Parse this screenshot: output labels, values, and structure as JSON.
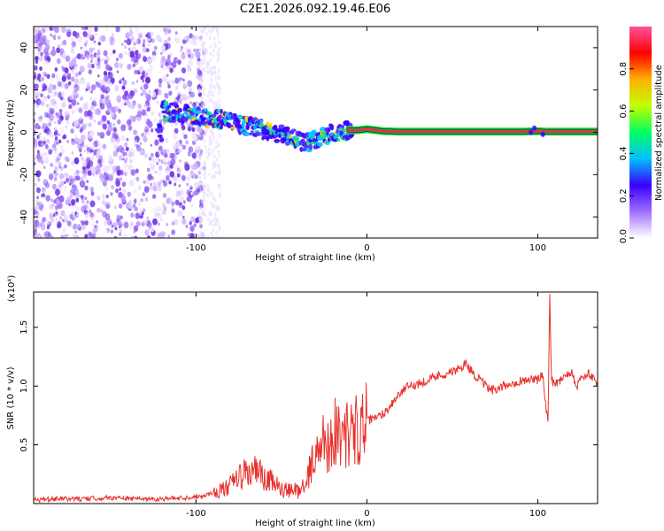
{
  "chart_data": [
    {
      "type": "heatmap",
      "title": "C2E1.2026.092.19.46.E06",
      "xlabel": "Height of straight line (km)",
      "ylabel": "Frequency (Hz)",
      "xlim": [
        -195,
        135
      ],
      "ylim": [
        -50,
        50
      ],
      "xticks": [
        -100,
        0,
        100
      ],
      "yticks": [
        -40,
        -20,
        0,
        20,
        40
      ],
      "signal_track": {
        "x": [
          -120,
          -110,
          -100,
          -95,
          -90,
          -85,
          -80,
          -75,
          -70,
          -65,
          -60,
          -55,
          -50,
          -45,
          -40,
          -35,
          -30,
          -25,
          -20,
          -15,
          -10,
          -5,
          0,
          5,
          10,
          20,
          30,
          40,
          50,
          60,
          70,
          80,
          90,
          100,
          105,
          110,
          120,
          130
        ],
        "y": [
          10,
          9,
          8,
          7,
          6,
          6,
          5,
          4,
          3,
          2,
          1,
          0,
          -1,
          -2,
          -4,
          -5,
          -3,
          -2,
          0,
          0.5,
          1,
          1,
          1.5,
          1,
          0.5,
          0.3,
          0.3,
          0.3,
          0.3,
          0.3,
          0.3,
          0.3,
          0.3,
          0.5,
          0.3,
          0.3,
          0.3,
          0.3
        ]
      },
      "colorbar": {
        "label": "Normalized spectral amplitude",
        "range": [
          0.0,
          1.0
        ],
        "ticks": [
          "0.0",
          "0.2",
          "0.4",
          "0.6",
          "0.8"
        ],
        "colors": [
          "#ffffff",
          "#a070ff",
          "#3a00ff",
          "#00c0ff",
          "#00ff60",
          "#c0ff00",
          "#ffb000",
          "#ff0000",
          "#ff50a0"
        ]
      }
    },
    {
      "type": "line",
      "xlabel": "Height of straight line (km)",
      "ylabel": "SNR (10 * v/v)",
      "multiplier": "(x10⁴)",
      "xlim": [
        -195,
        135
      ],
      "ylim": [
        0,
        1.8
      ],
      "xticks": [
        -100,
        0,
        100
      ],
      "yticks": [
        0.5,
        1.0,
        1.5
      ],
      "ytick_labels": [
        "0.5",
        "1.0",
        "1.5"
      ],
      "series": [
        {
          "name": "SNR",
          "color": "#e8312c",
          "x": [
            -195,
            -180,
            -165,
            -150,
            -135,
            -120,
            -105,
            -95,
            -88,
            -82,
            -78,
            -74,
            -70,
            -67,
            -64,
            -61,
            -58,
            -55,
            -52,
            -48,
            -44,
            -40,
            -36,
            -32,
            -28,
            -25,
            -22,
            -19,
            -16,
            -13,
            -10,
            -7,
            -4,
            0,
            4,
            8,
            12,
            16,
            20,
            25,
            30,
            35,
            40,
            45,
            50,
            55,
            58,
            61,
            64,
            68,
            72,
            76,
            80,
            84,
            88,
            92,
            96,
            100,
            103,
            105,
            106,
            107,
            108,
            110,
            113,
            116,
            120,
            123,
            126,
            130,
            135
          ],
          "y": [
            0.03,
            0.04,
            0.04,
            0.05,
            0.04,
            0.04,
            0.05,
            0.07,
            0.1,
            0.13,
            0.18,
            0.24,
            0.25,
            0.28,
            0.27,
            0.22,
            0.18,
            0.2,
            0.14,
            0.1,
            0.1,
            0.12,
            0.16,
            0.35,
            0.45,
            0.55,
            0.5,
            0.62,
            0.6,
            0.58,
            0.6,
            0.62,
            0.65,
            0.7,
            0.72,
            0.75,
            0.8,
            0.88,
            0.95,
            1.0,
            1.02,
            1.05,
            1.08,
            1.1,
            1.12,
            1.15,
            1.2,
            1.13,
            1.08,
            1.02,
            0.97,
            0.96,
            1.0,
            1.02,
            1.04,
            1.05,
            1.06,
            1.05,
            1.1,
            0.8,
            0.72,
            1.8,
            1.05,
            1.02,
            1.05,
            1.1,
            1.12,
            1.0,
            1.08,
            1.1,
            1.02
          ]
        }
      ]
    }
  ]
}
